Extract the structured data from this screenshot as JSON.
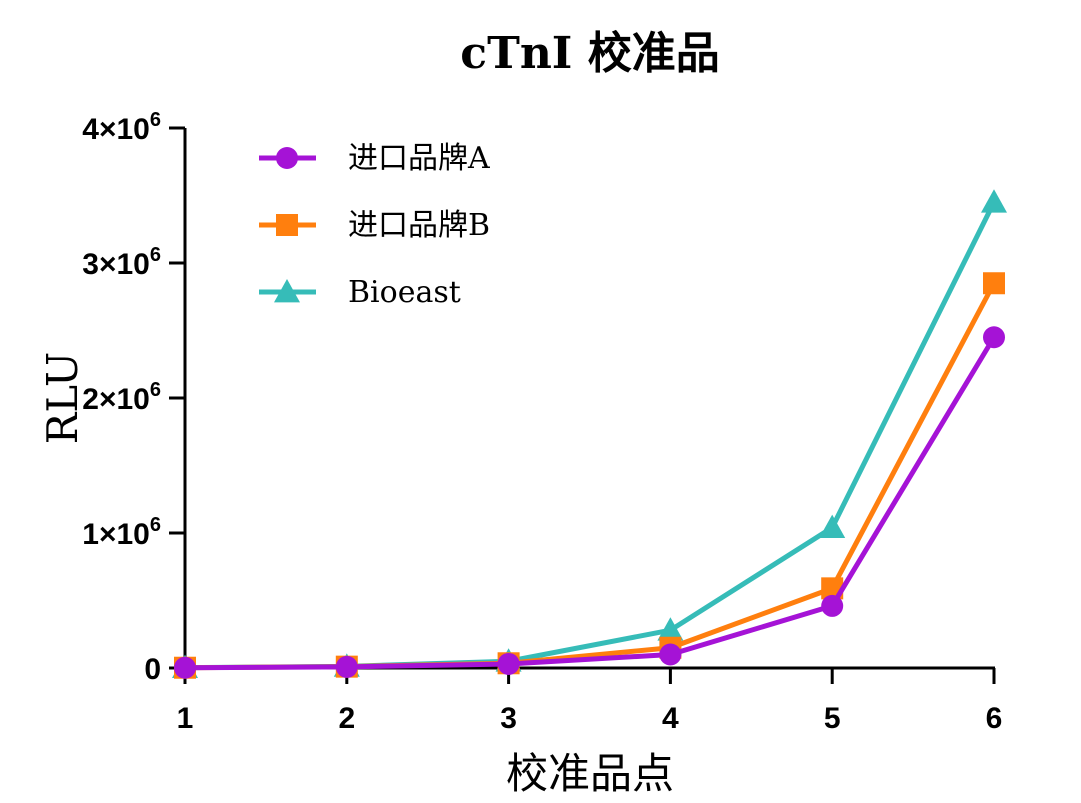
{
  "chart_data": {
    "type": "line",
    "title": "cTnI 校准品",
    "xlabel": "校准品点",
    "ylabel": "RLU",
    "x": [
      1,
      2,
      3,
      4,
      5,
      6
    ],
    "xlim": [
      1,
      6
    ],
    "ylim": [
      0,
      4000000
    ],
    "y_ticks": [
      {
        "value": 0,
        "base": "0",
        "exp": ""
      },
      {
        "value": 1000000,
        "base": "1×10",
        "exp": "6"
      },
      {
        "value": 2000000,
        "base": "2×10",
        "exp": "6"
      },
      {
        "value": 3000000,
        "base": "3×10",
        "exp": "6"
      },
      {
        "value": 4000000,
        "base": "4×10",
        "exp": "6"
      }
    ],
    "x_ticks": [
      "1",
      "2",
      "3",
      "4",
      "5",
      "6"
    ],
    "grid": false,
    "legend_position": "top-left",
    "series": [
      {
        "name": "进口品牌A",
        "color": "#a513d6",
        "marker": "circle",
        "values": [
          2000,
          8000,
          30000,
          100000,
          460000,
          2450000
        ]
      },
      {
        "name": "进口品牌B",
        "color": "#ff7f0e",
        "marker": "square",
        "values": [
          2000,
          10000,
          35000,
          150000,
          590000,
          2850000
        ]
      },
      {
        "name": "Bioeast",
        "color": "#36bcb8",
        "marker": "triangle",
        "values": [
          3000,
          12000,
          50000,
          280000,
          1040000,
          3450000
        ]
      }
    ]
  }
}
